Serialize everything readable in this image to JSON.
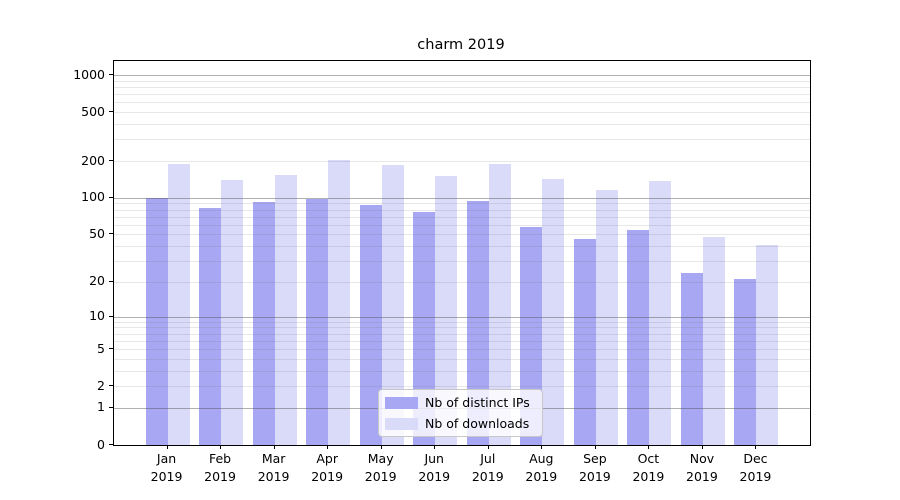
{
  "title": "charm 2019",
  "chart_data": {
    "type": "bar",
    "title": "charm 2019",
    "categories": [
      "Jan 2019",
      "Feb 2019",
      "Mar 2019",
      "Apr 2019",
      "May 2019",
      "Jun 2019",
      "Jul 2019",
      "Aug 2019",
      "Sep 2019",
      "Oct 2019",
      "Nov 2019",
      "Dec 2019"
    ],
    "series": [
      {
        "name": "Nb of distinct IPs",
        "color": "#a7a7f3",
        "values": [
          100,
          82,
          93,
          98,
          88,
          76,
          95,
          58,
          46,
          54,
          24,
          21
        ]
      },
      {
        "name": "Nb of downloads",
        "color": "#dadaf9",
        "values": [
          190,
          141,
          154,
          202,
          185,
          151,
          190,
          143,
          117,
          137,
          48,
          41
        ]
      }
    ],
    "xlabel": "",
    "ylabel": "",
    "yscale": "log1p",
    "ylim": [
      0,
      1300
    ],
    "yticks": [
      1000,
      500,
      200,
      100,
      50,
      20,
      10,
      5,
      2,
      1,
      0
    ],
    "major_gridlines": [
      1,
      10,
      100,
      1000
    ],
    "minor_gridlines": [
      2,
      3,
      4,
      5,
      6,
      7,
      8,
      9,
      20,
      30,
      40,
      50,
      60,
      70,
      80,
      90,
      200,
      300,
      400,
      500,
      600,
      700,
      800,
      900
    ],
    "grid": true,
    "legend_position": "lower center"
  }
}
